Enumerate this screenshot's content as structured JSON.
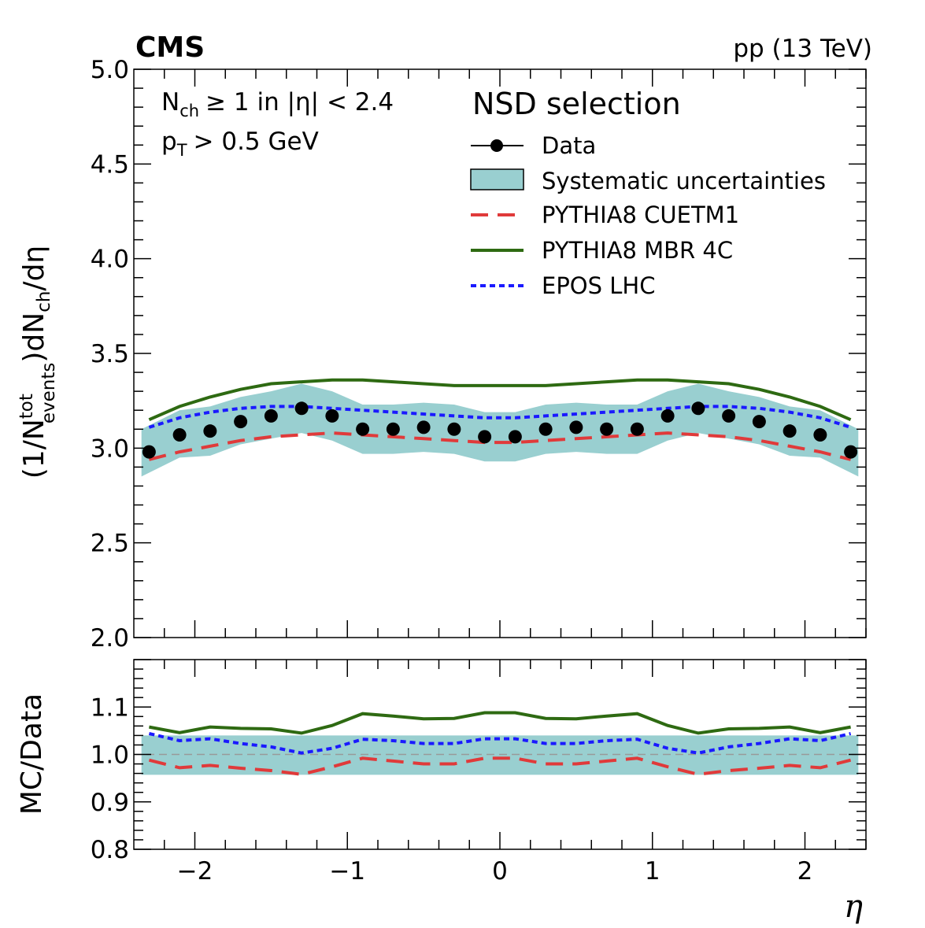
{
  "header": {
    "experiment": "CMS",
    "energy": "pp (13 TeV)"
  },
  "annotations": {
    "line1_n": "N",
    "line1_sub": "ch",
    "line1_rest": "≥ 1 in |η| < 2.4",
    "line2_p": "p",
    "line2_sub": "T",
    "line2_rest": "> 0.5 GeV",
    "selection": "NSD selection"
  },
  "legend": {
    "data": "Data",
    "syst": "Systematic uncertainties",
    "cuetm1": "PYTHIA8 CUETM1",
    "mbr": "PYTHIA8 MBR 4C",
    "epos": "EPOS LHC"
  },
  "colors": {
    "data": "#000000",
    "band": "#99cfd0",
    "cuetm1": "#e03a3a",
    "mbr": "#2e6a12",
    "epos": "#1a1aff",
    "ref_line": "#999999"
  },
  "axes": {
    "xlabel": "η",
    "ylabel_top": {
      "prefix": "(1/N",
      "sup": "tot",
      "sub": "events",
      "mid": ")dN",
      "sub2": "ch",
      "suffix": "/dη"
    },
    "ylabel_bottom": "MC/Data"
  },
  "chart_data": [
    {
      "type": "line",
      "panel": "main",
      "ylim": [
        2.0,
        5.0
      ],
      "xlim": [
        -2.4,
        2.4
      ],
      "yticks": [
        "2.0",
        "2.5",
        "3.0",
        "3.5",
        "4.0",
        "4.5",
        "5.0"
      ],
      "xticks": [
        "−2",
        "−1",
        "0",
        "1",
        "2"
      ],
      "x": [
        -2.3,
        -2.1,
        -1.9,
        -1.7,
        -1.5,
        -1.3,
        -1.1,
        -0.9,
        -0.7,
        -0.5,
        -0.3,
        -0.1,
        0.1,
        0.3,
        0.5,
        0.7,
        0.9,
        1.1,
        1.3,
        1.5,
        1.7,
        1.9,
        2.1,
        2.3
      ],
      "series": [
        {
          "name": "Data",
          "values": [
            2.98,
            3.07,
            3.09,
            3.14,
            3.17,
            3.21,
            3.17,
            3.1,
            3.1,
            3.11,
            3.1,
            3.06,
            3.06,
            3.1,
            3.11,
            3.1,
            3.1,
            3.17,
            3.21,
            3.17,
            3.14,
            3.09,
            3.07,
            2.98
          ]
        },
        {
          "name": "Systematic uncertainties",
          "lower": [
            2.85,
            2.95,
            2.96,
            3.02,
            3.05,
            3.08,
            3.04,
            2.97,
            2.97,
            2.98,
            2.97,
            2.93,
            2.93,
            2.97,
            2.98,
            2.97,
            2.97,
            3.04,
            3.08,
            3.05,
            3.02,
            2.96,
            2.95,
            2.85
          ],
          "upper": [
            3.1,
            3.2,
            3.22,
            3.27,
            3.3,
            3.34,
            3.3,
            3.23,
            3.23,
            3.24,
            3.23,
            3.19,
            3.19,
            3.23,
            3.24,
            3.23,
            3.23,
            3.3,
            3.34,
            3.3,
            3.27,
            3.22,
            3.2,
            3.1
          ]
        },
        {
          "name": "PYTHIA8 CUETM1",
          "values": [
            2.94,
            2.98,
            3.01,
            3.04,
            3.06,
            3.07,
            3.08,
            3.07,
            3.06,
            3.05,
            3.04,
            3.03,
            3.03,
            3.04,
            3.05,
            3.06,
            3.07,
            3.08,
            3.07,
            3.06,
            3.04,
            3.01,
            2.98,
            2.94
          ]
        },
        {
          "name": "PYTHIA8 MBR 4C",
          "values": [
            3.15,
            3.22,
            3.27,
            3.31,
            3.34,
            3.35,
            3.36,
            3.36,
            3.35,
            3.34,
            3.33,
            3.33,
            3.33,
            3.33,
            3.34,
            3.35,
            3.36,
            3.36,
            3.35,
            3.34,
            3.31,
            3.27,
            3.22,
            3.15
          ]
        },
        {
          "name": "EPOS LHC",
          "values": [
            3.11,
            3.16,
            3.19,
            3.21,
            3.22,
            3.22,
            3.21,
            3.2,
            3.19,
            3.18,
            3.17,
            3.16,
            3.16,
            3.17,
            3.18,
            3.19,
            3.2,
            3.21,
            3.22,
            3.22,
            3.21,
            3.19,
            3.16,
            3.11
          ]
        }
      ]
    },
    {
      "type": "line",
      "panel": "ratio",
      "ylim": [
        0.8,
        1.2
      ],
      "xlim": [
        -2.4,
        2.4
      ],
      "yticks": [
        "0.8",
        "0.9",
        "1.0",
        "1.1"
      ],
      "xticks": [
        "−2",
        "−1",
        "0",
        "1",
        "2"
      ],
      "reference": 1.0,
      "x": [
        -2.3,
        -2.1,
        -1.9,
        -1.7,
        -1.5,
        -1.3,
        -1.1,
        -0.9,
        -0.7,
        -0.5,
        -0.3,
        -0.1,
        0.1,
        0.3,
        0.5,
        0.7,
        0.9,
        1.1,
        1.3,
        1.5,
        1.7,
        1.9,
        2.1,
        2.3
      ],
      "series": [
        {
          "name": "Systematic uncertainties",
          "lower": 0.957,
          "upper": 1.04
        },
        {
          "name": "PYTHIA8 CUETM1",
          "values": [
            0.988,
            0.972,
            0.977,
            0.971,
            0.966,
            0.958,
            0.974,
            0.992,
            0.986,
            0.98,
            0.98,
            0.992,
            0.992,
            0.98,
            0.98,
            0.986,
            0.992,
            0.974,
            0.958,
            0.966,
            0.971,
            0.977,
            0.972,
            0.988
          ]
        },
        {
          "name": "PYTHIA8 MBR 4C",
          "values": [
            1.058,
            1.046,
            1.058,
            1.055,
            1.054,
            1.045,
            1.061,
            1.086,
            1.081,
            1.075,
            1.076,
            1.088,
            1.088,
            1.076,
            1.075,
            1.081,
            1.086,
            1.061,
            1.045,
            1.054,
            1.055,
            1.058,
            1.046,
            1.058
          ]
        },
        {
          "name": "EPOS LHC",
          "values": [
            1.044,
            1.029,
            1.033,
            1.023,
            1.016,
            1.003,
            1.013,
            1.032,
            1.029,
            1.023,
            1.023,
            1.033,
            1.033,
            1.023,
            1.023,
            1.029,
            1.032,
            1.013,
            1.003,
            1.016,
            1.023,
            1.033,
            1.029,
            1.044
          ]
        }
      ]
    }
  ]
}
